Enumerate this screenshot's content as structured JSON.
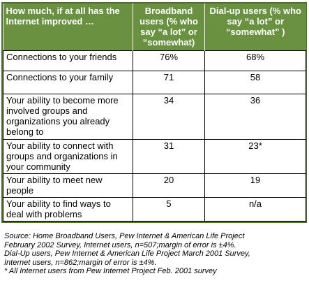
{
  "table": {
    "headers": [
      "How much, if at all has the Internet improved …",
      "Broadband users (% who say “a lot” or “somewhat)",
      "Dial-up users (% who say “a lot” or “somewhat” )"
    ],
    "rows": [
      {
        "label": "Connections to your friends",
        "broadband": "76%",
        "dialup": "68%"
      },
      {
        "label": "Connections to your family",
        "broadband": "71",
        "dialup": "58"
      },
      {
        "label": "Your ability to become more involved groups and organizations you already belong to",
        "broadband": "34",
        "dialup": "36"
      },
      {
        "label": "Your ability to connect with groups and organizations in your community",
        "broadband": "31",
        "dialup": "23*"
      },
      {
        "label": "Your ability to meet new people",
        "broadband": "20",
        "dialup": "19"
      },
      {
        "label": "Your ability to find ways to deal with problems",
        "broadband": "5",
        "dialup": "n/a"
      }
    ]
  },
  "sources": [
    "Source: Home Broadband Users, Pew Internet & American Life Project",
    "February 2002 Survey, Internet users, n=507;margin of error is ±4%.",
    "Dial-Up users, Pew Internet & American Life Project March 2001 Survey,",
    "Internet users, n=862;margin of error is ±4%.",
    "* All Internet users from Pew Internet Project Feb. 2001 survey"
  ]
}
